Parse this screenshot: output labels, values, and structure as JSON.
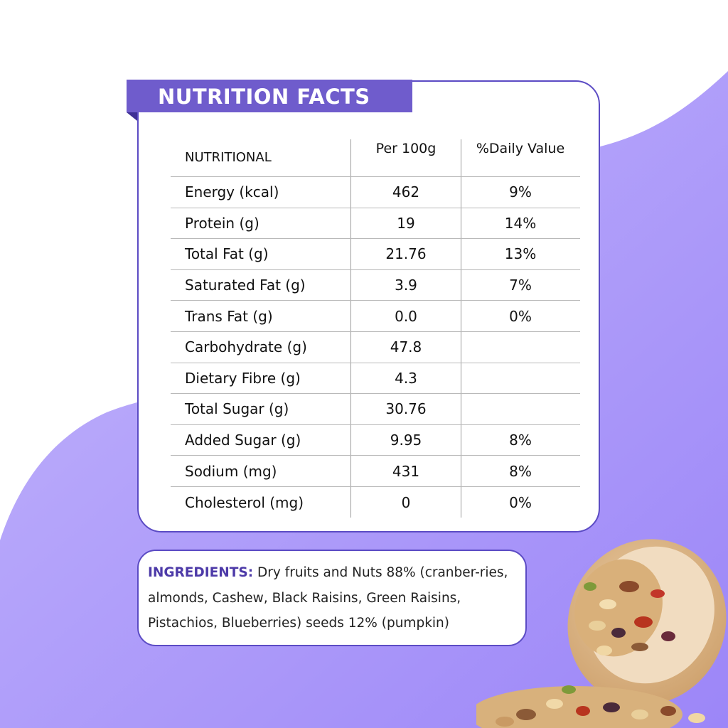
{
  "title": "NUTRITION FACTS",
  "table": {
    "headers": [
      "NUTRITIONAL",
      "Per 100g",
      "%Daily Value"
    ],
    "rows": [
      {
        "name": "Energy (kcal)",
        "per100g": "462",
        "dv": "9%"
      },
      {
        "name": "Protein (g)",
        "per100g": "19",
        "dv": "14%"
      },
      {
        "name": "Total Fat (g)",
        "per100g": "21.76",
        "dv": "13%"
      },
      {
        "name": "Saturated Fat (g)",
        "per100g": "3.9",
        "dv": "7%"
      },
      {
        "name": "Trans Fat (g)",
        "per100g": "0.0",
        "dv": "0%"
      },
      {
        "name": "Carbohydrate (g)",
        "per100g": "47.8",
        "dv": ""
      },
      {
        "name": "Dietary Fibre (g)",
        "per100g": "4.3",
        "dv": ""
      },
      {
        "name": "Total Sugar (g)",
        "per100g": "30.76",
        "dv": ""
      },
      {
        "name": "Added Sugar (g)",
        "per100g": "9.95",
        "dv": "8%"
      },
      {
        "name": "Sodium (mg)",
        "per100g": "431",
        "dv": "8%"
      },
      {
        "name": "Cholesterol (mg)",
        "per100g": "0",
        "dv": "0%"
      }
    ]
  },
  "ingredients": {
    "label": "INGREDIENTS:",
    "text": " Dry fruits and Nuts 88% (cranber-ries, almonds, Cashew, Black Raisins, Green Raisins, Pistachios, Blueberries) seeds 12% (pumpkin)"
  },
  "colors": {
    "accent": "#6f5ccc",
    "accent_dark": "#3e2f94",
    "background_blob": "#a28ef9",
    "ingredient_label": "#4d3aa8"
  },
  "icons": [
    "trail-mix-bowl-image"
  ]
}
